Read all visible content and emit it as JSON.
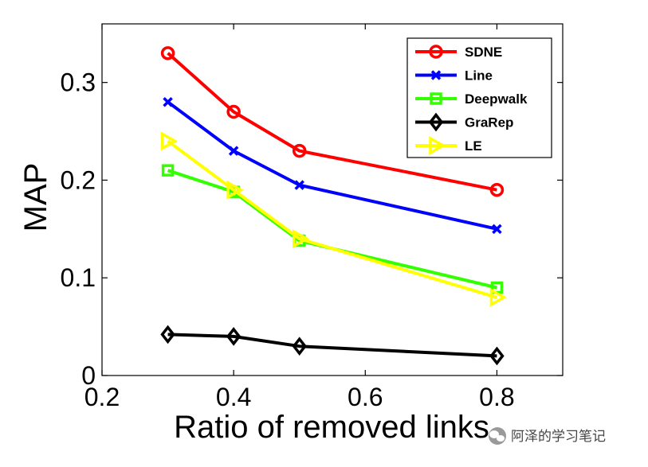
{
  "chart_data": {
    "type": "line",
    "title": "",
    "xlabel": "Ratio of removed links",
    "ylabel": "MAP",
    "x": [
      0.3,
      0.4,
      0.5,
      0.8
    ],
    "xlim": [
      0.2,
      0.9
    ],
    "ylim": [
      0,
      0.36
    ],
    "xticks": [
      0.2,
      0.4,
      0.6,
      0.8
    ],
    "xtick_labels": [
      "0.2",
      "0.4",
      "0.6",
      "0.8"
    ],
    "yticks": [
      0,
      0.1,
      0.2,
      0.3
    ],
    "ytick_labels": [
      "0",
      "0.1",
      "0.2",
      "0.3"
    ],
    "grid": false,
    "legend_position": "top-right",
    "series": [
      {
        "name": "SDNE",
        "values": [
          0.33,
          0.27,
          0.23,
          0.19
        ],
        "color": "#ff0000",
        "marker": "circle"
      },
      {
        "name": "Line",
        "values": [
          0.28,
          0.23,
          0.195,
          0.15
        ],
        "color": "#0000ff",
        "marker": "x"
      },
      {
        "name": "Deepwalk",
        "values": [
          0.21,
          0.188,
          0.138,
          0.09
        ],
        "color": "#33ff00",
        "marker": "square"
      },
      {
        "name": "GraRep",
        "values": [
          0.042,
          0.04,
          0.03,
          0.02
        ],
        "color": "#000000",
        "marker": "diamond"
      },
      {
        "name": "LE",
        "values": [
          0.24,
          0.19,
          0.14,
          0.08
        ],
        "color": "#ffff00",
        "marker": "triangle-right"
      }
    ]
  },
  "watermark": {
    "text": "阿泽的学习笔记",
    "icon": "wechat-icon"
  }
}
